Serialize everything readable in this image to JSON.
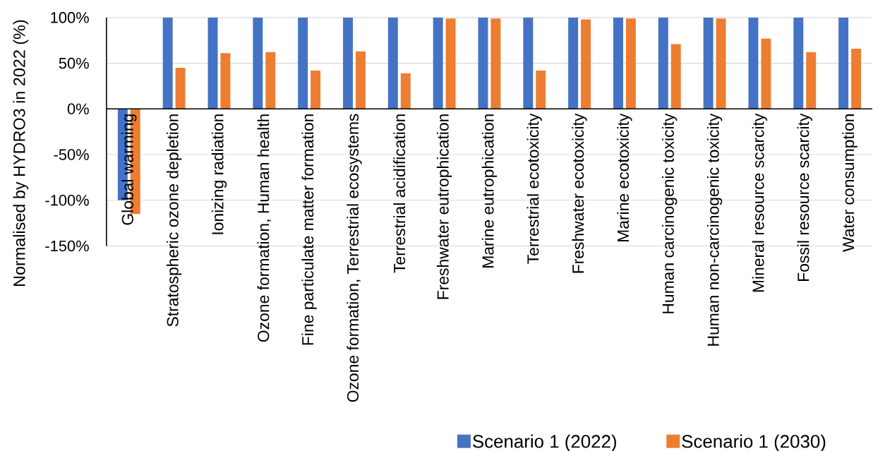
{
  "chart_data": {
    "type": "bar",
    "ylabel": "Normalised by HYDRO3 in 2022 (%)",
    "categories": [
      "Global warming",
      "Stratospheric ozone depletion",
      "Ionizing radiation",
      "Ozone formation, Human health",
      "Fine particulate matter formation",
      "Ozone formation, Terrestrial ecosystems",
      "Terrestrial acidification",
      "Freshwater eutrophication",
      "Marine eutrophication",
      "Terrestrial ecotoxicity",
      "Freshwater ecotoxicity",
      "Marine ecotoxicity",
      "Human carcinogenic toxicity",
      "Human non-carcinogenic toxicity",
      "Mineral resource scarcity",
      "Fossil resource scarcity",
      "Water consumption"
    ],
    "series": [
      {
        "name": "Scenario 1 (2022)",
        "color": "#4472c4",
        "values": [
          -100,
          100,
          100,
          100,
          100,
          100,
          100,
          100,
          100,
          100,
          100,
          100,
          100,
          100,
          100,
          100,
          100
        ]
      },
      {
        "name": "Scenario 1 (2030)",
        "color": "#ed7d31",
        "values": [
          -115,
          45,
          61,
          62,
          42,
          63,
          39,
          99,
          99,
          42,
          98,
          99,
          71,
          99,
          77,
          62,
          66
        ]
      }
    ],
    "ylim": [
      -150,
      100
    ],
    "yticks": [
      {
        "value": -150,
        "label": "-150%"
      },
      {
        "value": -100,
        "label": "-100%"
      },
      {
        "value": -50,
        "label": "-50%"
      },
      {
        "value": 0,
        "label": "0%"
      },
      {
        "value": 50,
        "label": "50%"
      },
      {
        "value": 100,
        "label": "100%"
      }
    ],
    "grid": "y",
    "legend": "bottom"
  }
}
